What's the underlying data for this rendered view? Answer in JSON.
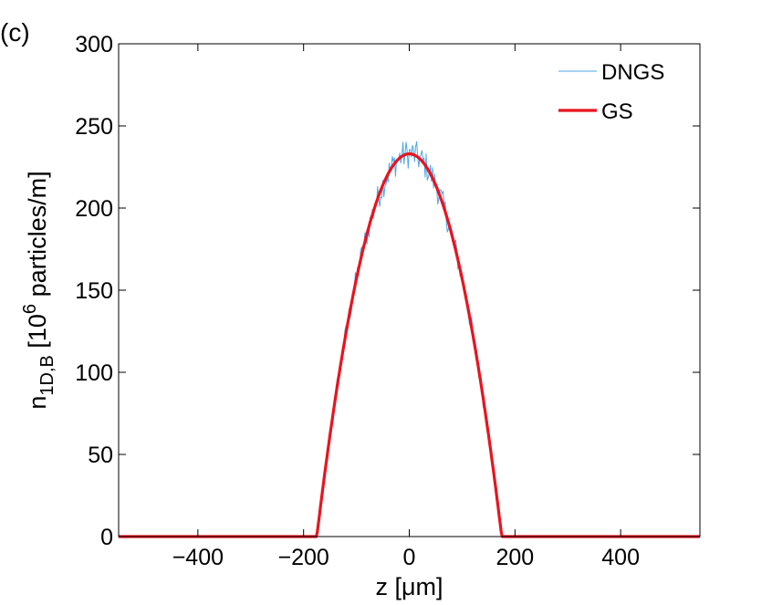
{
  "chart_data": {
    "type": "line",
    "panel_label": "(c)",
    "xlabel": "z [μm]",
    "ylabel": {
      "base": "n",
      "subscript": "1D,B",
      "bracket_open": " [10",
      "superscript": "6",
      "unit_rest": " particles/m]"
    },
    "xlim": [
      -550,
      550
    ],
    "ylim": [
      0,
      300
    ],
    "xticks": [
      -400,
      -200,
      0,
      200,
      400
    ],
    "xtick_labels": [
      "−400",
      "−200",
      "0",
      "200",
      "400"
    ],
    "yticks": [
      0,
      50,
      100,
      150,
      200,
      250,
      300
    ],
    "ytick_labels": [
      "0",
      "50",
      "100",
      "150",
      "200",
      "250",
      "300"
    ],
    "grid": false,
    "legend_position": "top-right",
    "series": [
      {
        "name": "DNGS",
        "color": "#4da6e8",
        "style": "thin-noisy",
        "peak": 233,
        "edge": 175,
        "noise_amplitude": 9
      },
      {
        "name": "GS",
        "color": "#e8141e",
        "style": "thick-smooth",
        "peak": 233,
        "edge": 175
      }
    ]
  }
}
